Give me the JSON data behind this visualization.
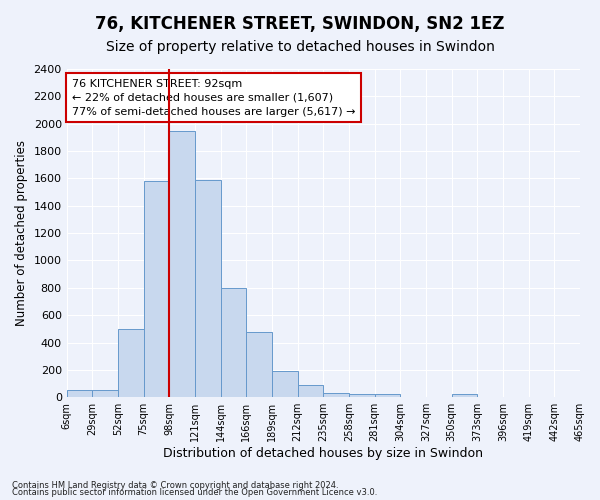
{
  "title": "76, KITCHENER STREET, SWINDON, SN2 1EZ",
  "subtitle": "Size of property relative to detached houses in Swindon",
  "xlabel": "Distribution of detached houses by size in Swindon",
  "ylabel": "Number of detached properties",
  "footnote1": "Contains HM Land Registry data © Crown copyright and database right 2024.",
  "footnote2": "Contains public sector information licensed under the Open Government Licence v3.0.",
  "bin_labels": [
    "6sqm",
    "29sqm",
    "52sqm",
    "75sqm",
    "98sqm",
    "121sqm",
    "144sqm",
    "166sqm",
    "189sqm",
    "212sqm",
    "235sqm",
    "258sqm",
    "281sqm",
    "304sqm",
    "327sqm",
    "350sqm",
    "373sqm",
    "396sqm",
    "419sqm",
    "442sqm",
    "465sqm"
  ],
  "bar_values": [
    50,
    50,
    500,
    1580,
    1950,
    1590,
    800,
    480,
    195,
    90,
    30,
    25,
    20,
    5,
    5,
    20,
    5,
    5,
    5,
    5
  ],
  "bar_color": "#c8d8ee",
  "bar_edge_color": "#6699cc",
  "vline_x": 4,
  "vline_color": "#cc0000",
  "annotation_text": "76 KITCHENER STREET: 92sqm\n← 22% of detached houses are smaller (1,607)\n77% of semi-detached houses are larger (5,617) →",
  "annotation_box_color": "#ffffff",
  "annotation_box_edge": "#cc0000",
  "ylim": [
    0,
    2400
  ],
  "yticks": [
    0,
    200,
    400,
    600,
    800,
    1000,
    1200,
    1400,
    1600,
    1800,
    2000,
    2200,
    2400
  ],
  "background_color": "#eef2fb",
  "grid_color": "#ffffff",
  "title_fontsize": 12,
  "subtitle_fontsize": 10,
  "xlabel_fontsize": 9,
  "ylabel_fontsize": 8.5
}
